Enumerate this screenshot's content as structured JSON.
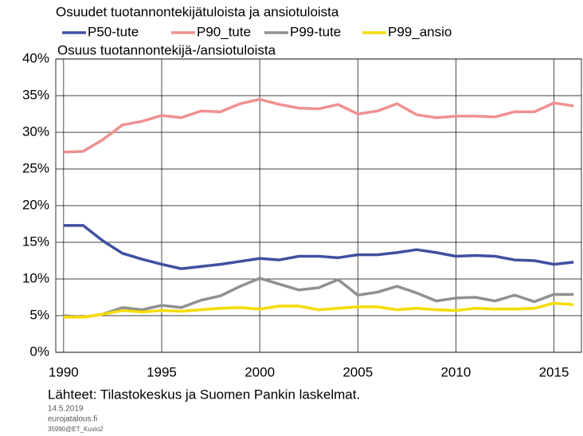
{
  "chart_data": {
    "type": "line",
    "title": "Osuudet tuotannontekijätuloista ja ansiotuloista",
    "y_label": "Osuus tuotannontekijä-/ansiotuloista",
    "source": "Lähteet: Tilastokeskus ja Suomen Pankin laskelmat.",
    "date": "14.5.2019",
    "site": "eurojatalous.fi",
    "code": "35990@ET_Kuvio2",
    "x": [
      1990,
      1991,
      1992,
      1993,
      1994,
      1995,
      1996,
      1997,
      1998,
      1999,
      2000,
      2001,
      2002,
      2003,
      2004,
      2005,
      2006,
      2007,
      2008,
      2009,
      2010,
      2011,
      2012,
      2013,
      2014,
      2015,
      2016
    ],
    "series": [
      {
        "name": "P50-tute",
        "color": "#4050a0",
        "values": [
          17.3,
          17.3,
          15.2,
          13.5,
          12.7,
          12.0,
          11.4,
          11.7,
          12.0,
          12.4,
          12.8,
          12.6,
          13.1,
          13.1,
          12.9,
          13.3,
          13.3,
          13.6,
          14.0,
          13.6,
          13.1,
          13.2,
          13.1,
          12.6,
          12.5,
          12.0,
          12.3
        ]
      },
      {
        "name": "P90_tute",
        "color": "#f09090",
        "values": [
          27.3,
          27.4,
          29.0,
          31.0,
          31.5,
          32.3,
          32.0,
          32.9,
          32.8,
          33.9,
          34.5,
          33.8,
          33.3,
          33.2,
          33.8,
          32.5,
          32.9,
          33.9,
          32.4,
          32.0,
          32.2,
          32.2,
          32.1,
          32.8,
          32.8,
          34.0,
          33.6
        ]
      },
      {
        "name": "P99-tute",
        "color": "#909090",
        "values": [
          5.0,
          4.8,
          5.2,
          6.1,
          5.8,
          6.4,
          6.1,
          7.1,
          7.7,
          9.0,
          10.1,
          9.3,
          8.5,
          8.8,
          9.9,
          7.8,
          8.2,
          9.0,
          8.1,
          7.0,
          7.4,
          7.5,
          7.0,
          7.8,
          6.9,
          7.9,
          7.9
        ]
      },
      {
        "name": "P99_ansio",
        "color": "#f5dc00",
        "values": [
          4.8,
          4.8,
          5.2,
          5.7,
          5.5,
          5.7,
          5.6,
          5.8,
          6.0,
          6.1,
          5.9,
          6.3,
          6.3,
          5.8,
          6.0,
          6.2,
          6.2,
          5.8,
          6.0,
          5.8,
          5.7,
          6.0,
          5.9,
          5.9,
          6.0,
          6.7,
          6.5
        ]
      }
    ],
    "xlim": [
      1989.6,
      2016.4
    ],
    "xticks": [
      1990,
      1995,
      2000,
      2005,
      2010,
      2015
    ],
    "ylim": [
      0,
      40
    ],
    "yticks": [
      {
        "value": 0,
        "label": "0%"
      },
      {
        "value": 5,
        "label": "5%"
      },
      {
        "value": 10,
        "label": "10%"
      },
      {
        "value": 15,
        "label": "15%"
      },
      {
        "value": 20,
        "label": "20%"
      },
      {
        "value": 25,
        "label": "25%"
      },
      {
        "value": 30,
        "label": "30%"
      },
      {
        "value": 35,
        "label": "35%"
      },
      {
        "value": 40,
        "label": "40%"
      }
    ],
    "grid": true
  }
}
